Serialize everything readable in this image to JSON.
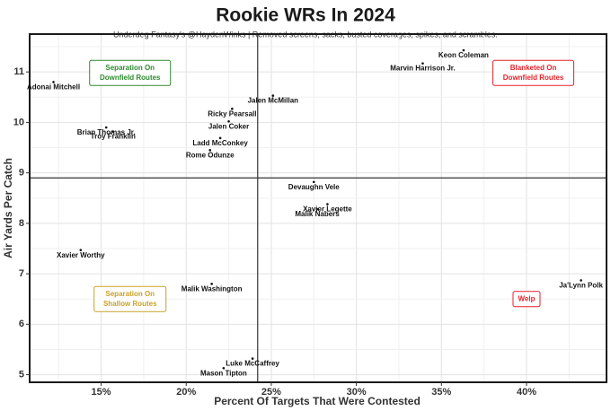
{
  "chart_data": {
    "type": "scatter",
    "title": "Rookie WRs In 2024",
    "subtitle": "Underdog Fantasy's @HaydenWinks | Removed screens, sacks, busted coverages, spikes, and scrambles.",
    "xlabel": "Percent Of Targets That Were Contested",
    "ylabel": "Air Yards Per Catch",
    "xlim": [
      10.8,
      44.7
    ],
    "ylim": [
      4.85,
      11.75
    ],
    "x_ticks": [
      15,
      20,
      25,
      30,
      35,
      40
    ],
    "x_tick_labels": [
      "15%",
      "20%",
      "25%",
      "30%",
      "35%",
      "40%"
    ],
    "y_ticks": [
      5,
      6,
      7,
      8,
      9,
      10,
      11
    ],
    "y_tick_labels": [
      "5",
      "6",
      "7",
      "8",
      "9",
      "10",
      "11"
    ],
    "grid": true,
    "reference_lines": {
      "x": 24.2,
      "y": 8.9
    },
    "points": [
      {
        "name": "Keon Coleman",
        "x": 36.3,
        "y": 11.43
      },
      {
        "name": "Marvin Harrison Jr.",
        "x": 33.9,
        "y": 11.17
      },
      {
        "name": "Adonai Mitchell",
        "x": 12.2,
        "y": 10.8
      },
      {
        "name": "Jalen McMillan",
        "x": 25.1,
        "y": 10.53
      },
      {
        "name": "Ricky Pearsall",
        "x": 22.7,
        "y": 10.27
      },
      {
        "name": "Brian Thomas Jr.",
        "x": 15.3,
        "y": 9.9
      },
      {
        "name": "Jalen Coker",
        "x": 22.5,
        "y": 10.02
      },
      {
        "name": "Troy Franklin",
        "x": 15.7,
        "y": 9.82
      },
      {
        "name": "Ladd McConkey",
        "x": 22.0,
        "y": 9.69
      },
      {
        "name": "Rome Odunze",
        "x": 21.4,
        "y": 9.45
      },
      {
        "name": "Devaughn Vele",
        "x": 27.5,
        "y": 8.82
      },
      {
        "name": "Xavier Legette",
        "x": 28.3,
        "y": 8.38
      },
      {
        "name": "Malik Nabers",
        "x": 27.7,
        "y": 8.28
      },
      {
        "name": "Xavier Worthy",
        "x": 13.8,
        "y": 7.47
      },
      {
        "name": "Malik Washington",
        "x": 21.5,
        "y": 6.8
      },
      {
        "name": "Ja'Lynn Polk",
        "x": 43.2,
        "y": 6.87
      },
      {
        "name": "Luke McCaffrey",
        "x": 23.9,
        "y": 5.32
      },
      {
        "name": "Mason Tipton",
        "x": 22.2,
        "y": 5.13
      }
    ],
    "quadrant_labels": [
      {
        "lines": [
          "Separation On",
          "Downfield Routes"
        ],
        "color": "#2e8b2e"
      },
      {
        "lines": [
          "Blanketed On",
          "Downfield Routes"
        ],
        "color": "#e8202a"
      },
      {
        "lines": [
          "Separation On",
          "Shallow Routes"
        ],
        "color": "#c9a227"
      },
      {
        "lines": [
          "Welp"
        ],
        "color": "#e8202a"
      }
    ]
  }
}
